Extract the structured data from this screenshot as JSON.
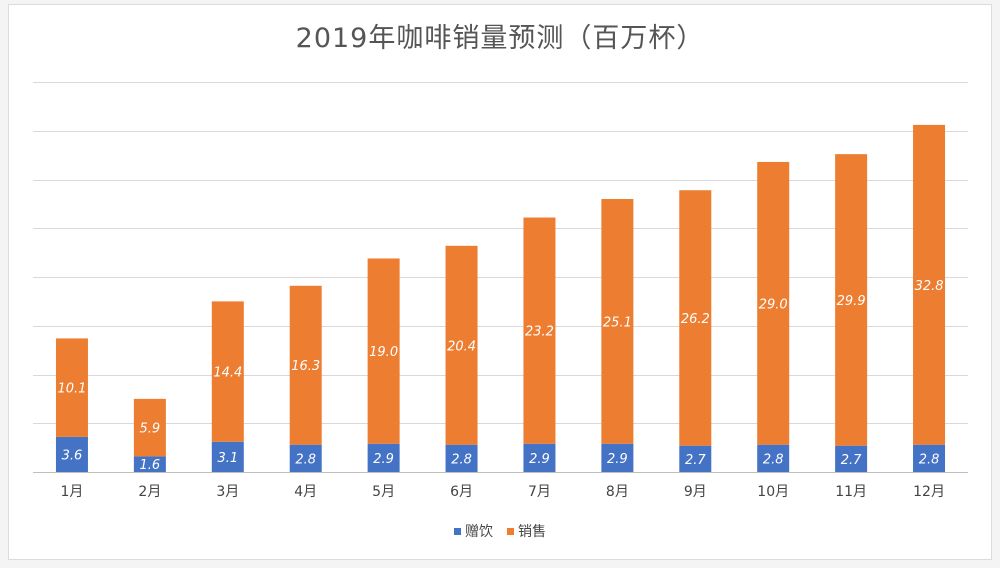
{
  "chart_data": {
    "type": "bar",
    "stacked": true,
    "title": "2019年咖啡销量预测（百万杯）",
    "categories": [
      "1月",
      "2月",
      "3月",
      "4月",
      "5月",
      "6月",
      "7月",
      "8月",
      "9月",
      "10月",
      "11月",
      "12月"
    ],
    "series": [
      {
        "name": "赠饮",
        "color": "#4472c4",
        "values": [
          3.6,
          1.6,
          3.1,
          2.8,
          2.9,
          2.8,
          2.9,
          2.9,
          2.7,
          2.8,
          2.7,
          2.8
        ],
        "labels": [
          "3.6",
          "1.6",
          "3.1",
          "2.8",
          "2.9",
          "2.8",
          "2.9",
          "2.9",
          "2.7",
          "2.8",
          "2.7",
          "2.8"
        ]
      },
      {
        "name": "销售",
        "color": "#ed7d31",
        "values": [
          10.1,
          5.9,
          14.4,
          16.3,
          19.0,
          20.4,
          23.2,
          25.1,
          26.2,
          29.0,
          29.9,
          32.8
        ],
        "labels": [
          "10.1",
          "5.9",
          "14.4",
          "16.3",
          "19.0",
          "20.4",
          "23.2",
          "25.1",
          "26.2",
          "29.0",
          "29.9",
          "32.8"
        ]
      }
    ],
    "ylim": [
      0,
      40
    ],
    "ytick_step": 5,
    "grid": true,
    "xlabel": "",
    "ylabel": "",
    "legend_position": "bottom"
  }
}
